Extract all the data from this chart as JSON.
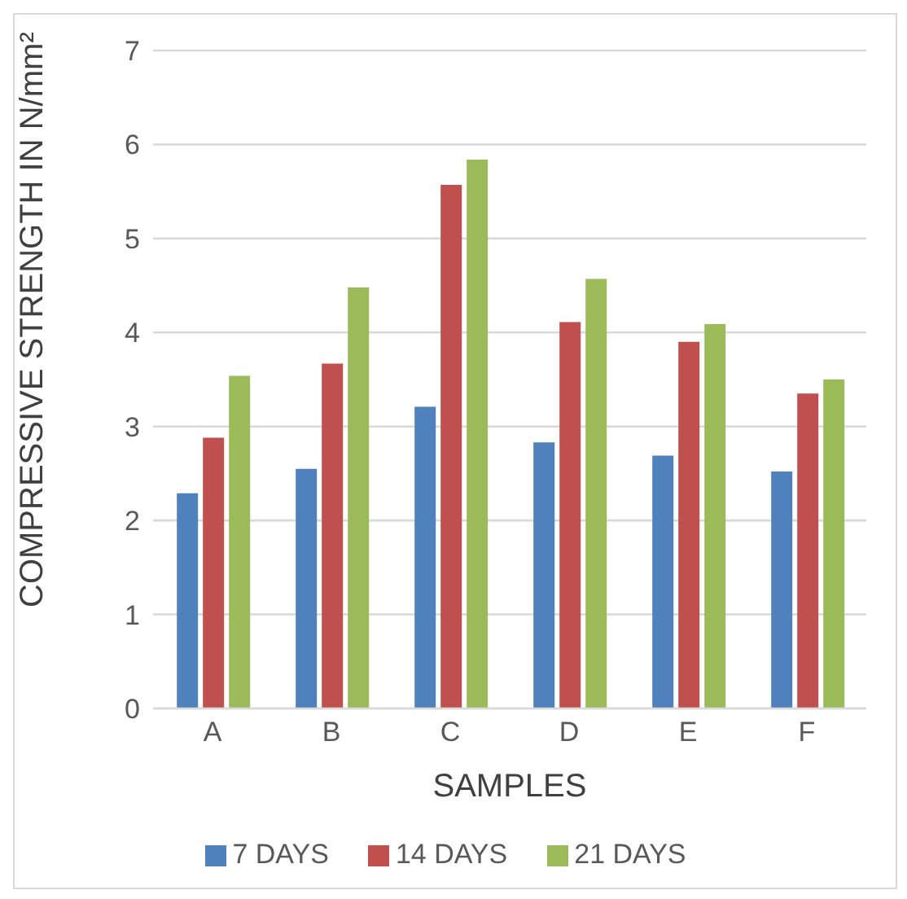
{
  "chart_data": {
    "type": "bar",
    "xlabel": "SAMPLES",
    "ylabel": "COMPRESSIVE STRENGTH IN N/mm²",
    "categories": [
      "A",
      "B",
      "C",
      "D",
      "E",
      "F"
    ],
    "series": [
      {
        "name": "7 DAYS",
        "color": "#4f81bd",
        "values": [
          2.29,
          2.55,
          3.21,
          2.83,
          2.69,
          2.52
        ]
      },
      {
        "name": "14 DAYS",
        "color": "#c0504d",
        "values": [
          2.88,
          3.67,
          5.57,
          4.11,
          3.9,
          3.35
        ]
      },
      {
        "name": "21 DAYS",
        "color": "#9bbb59",
        "values": [
          3.54,
          4.48,
          5.84,
          4.57,
          4.09,
          3.5
        ]
      }
    ],
    "ylim": [
      0,
      7
    ],
    "yticks": [
      0,
      1,
      2,
      3,
      4,
      5,
      6,
      7
    ],
    "grid": "y",
    "legend": "bottom"
  }
}
